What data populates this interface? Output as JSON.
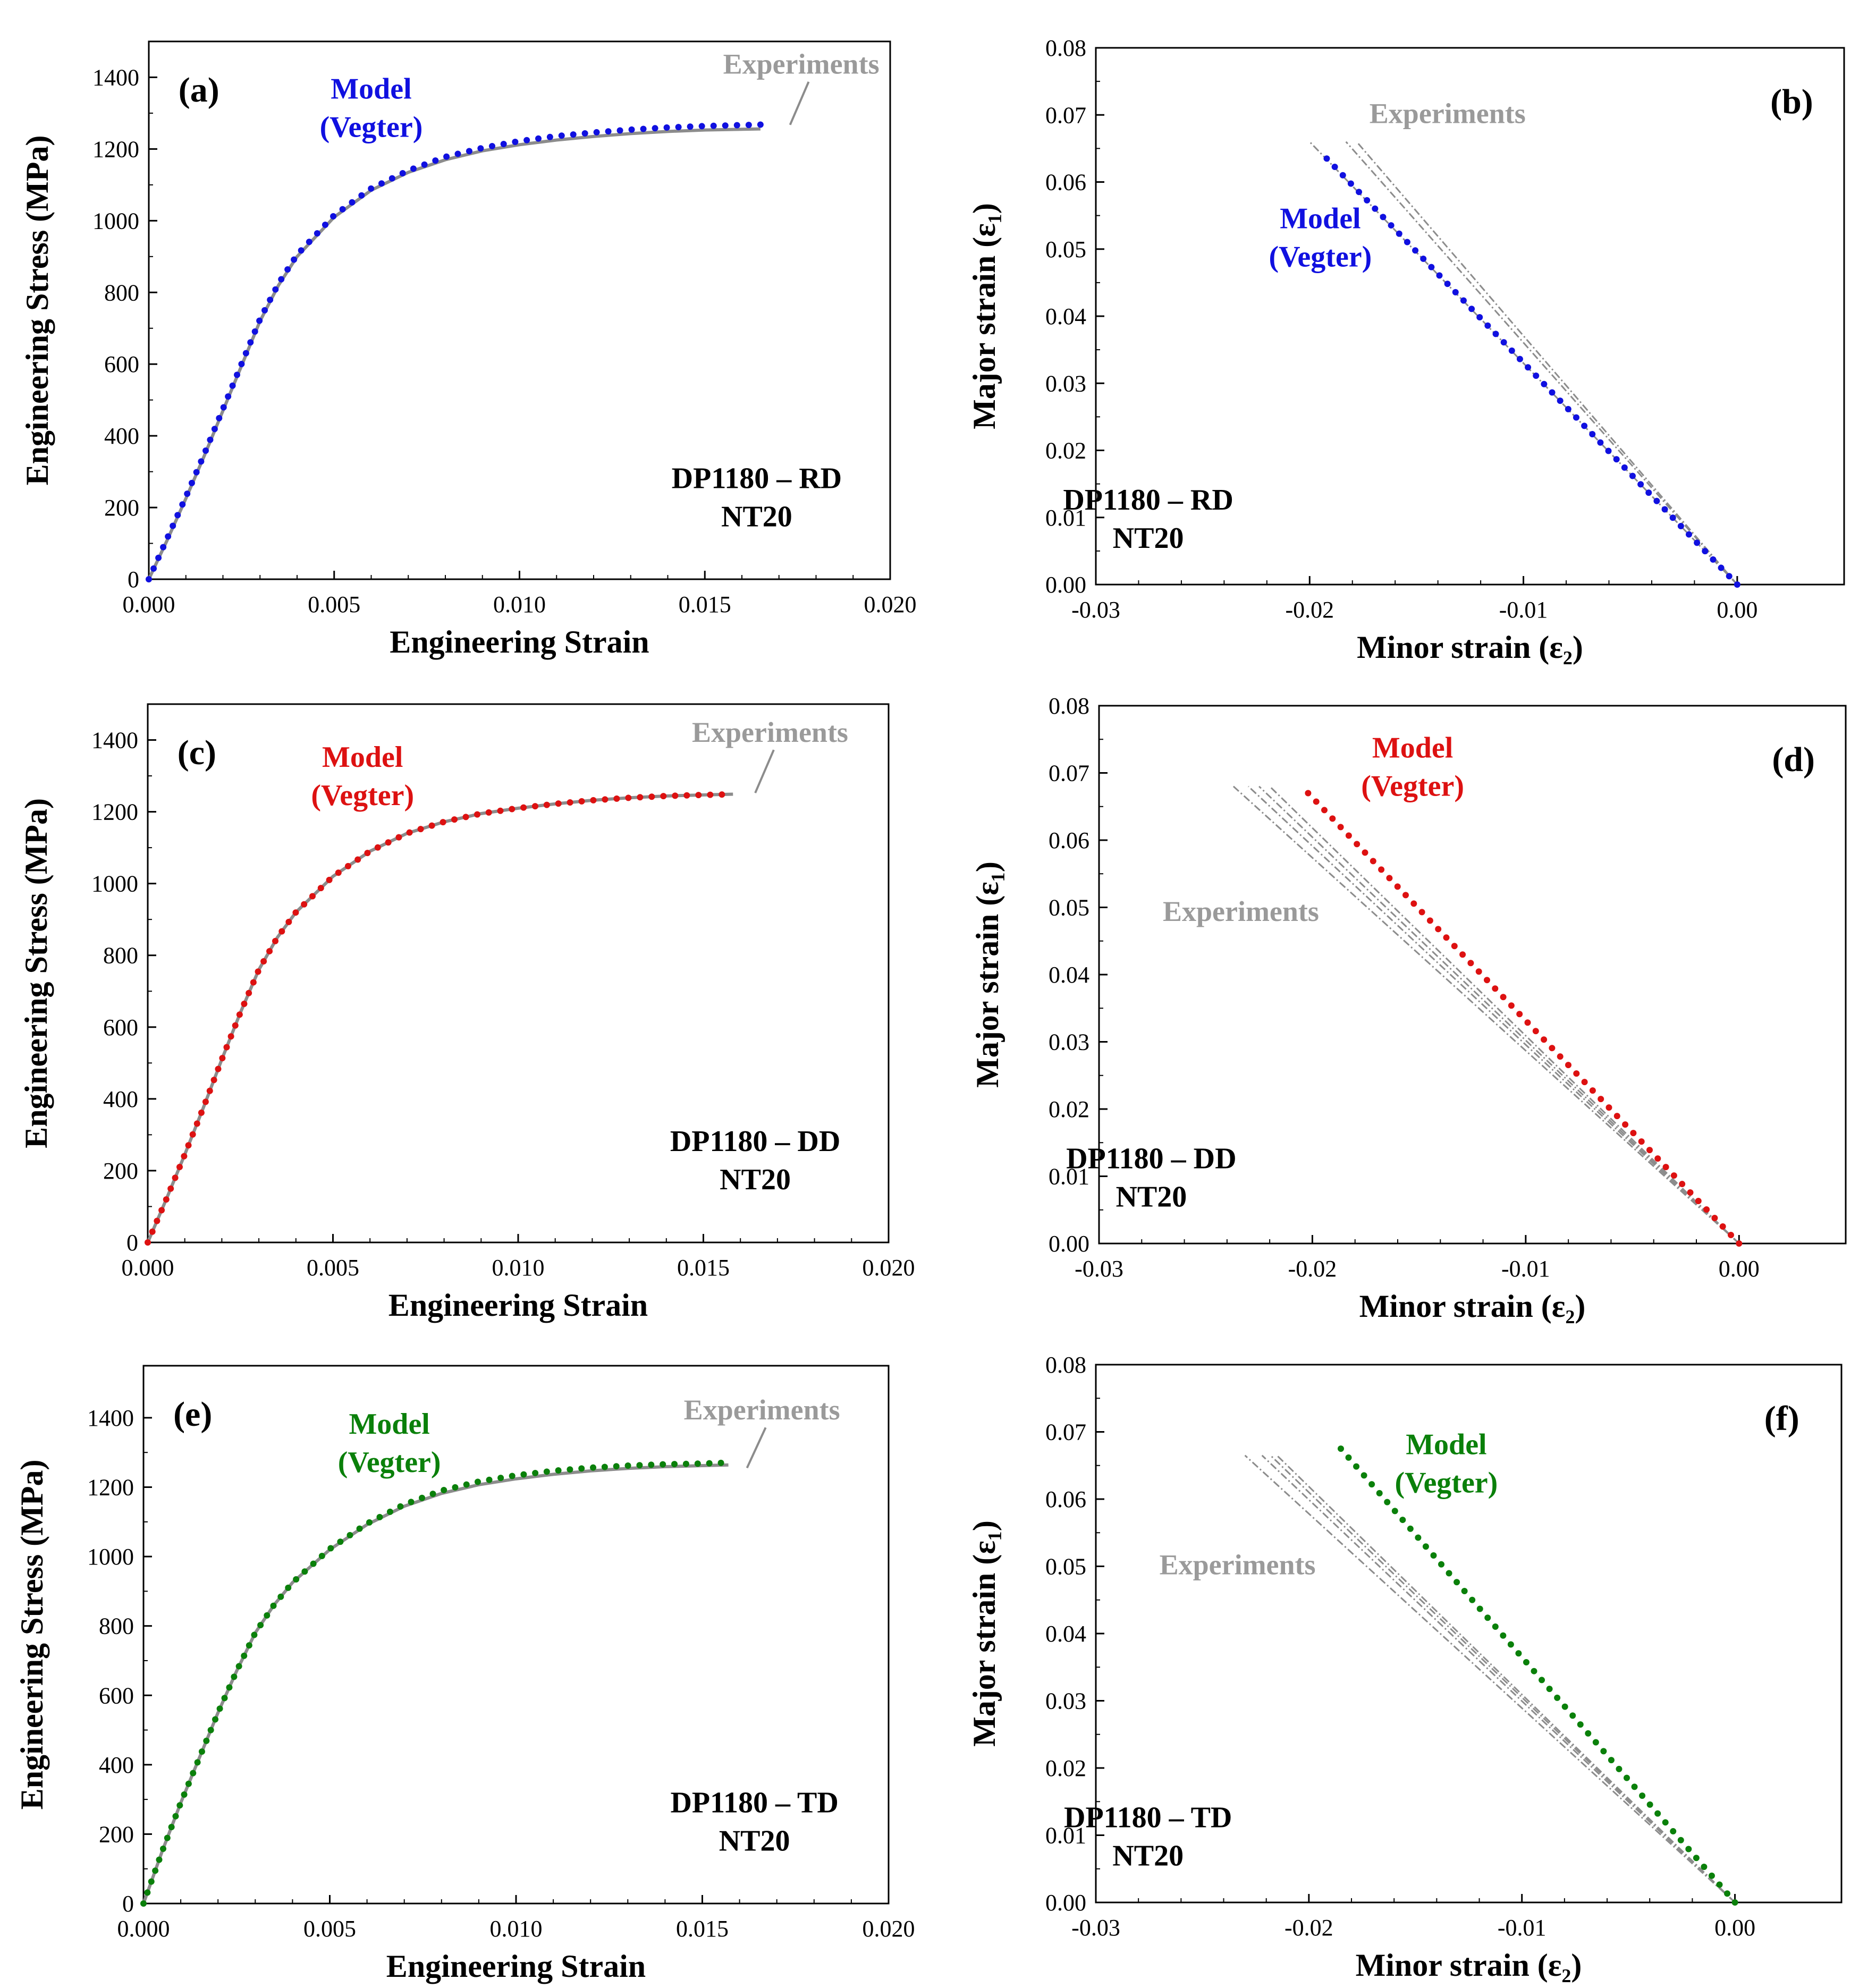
{
  "figure": {
    "description_panels": [
      "a",
      "b",
      "c",
      "d",
      "e",
      "f"
    ]
  },
  "colors": {
    "experiments": "#8c8c8c",
    "experiments_label": "#9a9a9a",
    "model_rd": "#1010e0",
    "model_dd": "#dd1111",
    "model_td": "#0a800a",
    "axis": "#000000"
  },
  "chart_data": [
    {
      "id": "a",
      "type": "line",
      "panel_label": "(a)",
      "xlabel": "Engineering Strain",
      "ylabel": "Engineering Stress (MPa)",
      "xlim": [
        0,
        0.02
      ],
      "ylim": [
        0,
        1500
      ],
      "xticks": [
        0,
        0.005,
        0.01,
        0.015,
        0.02
      ],
      "xtick_labels": [
        "0.000",
        "0.005",
        "0.010",
        "0.015",
        "0.020"
      ],
      "yticks": [
        0,
        200,
        400,
        600,
        800,
        1000,
        1200,
        1400
      ],
      "ytick_labels": [
        "0",
        "200",
        "400",
        "600",
        "800",
        "1000",
        "1200",
        "1400"
      ],
      "annotation": [
        "DP1180 – RD",
        "NT20"
      ],
      "legend": {
        "experiments": "Experiments",
        "model": [
          "Model",
          "(Vegter)"
        ]
      },
      "model_color": "#1010e0",
      "series": [
        {
          "name": "Experiments",
          "style": "solid-gray",
          "x": [
            0,
            0.0005,
            0.001,
            0.0015,
            0.002,
            0.0025,
            0.003,
            0.0035,
            0.004,
            0.005,
            0.006,
            0.007,
            0.008,
            0.009,
            0.01,
            0.011,
            0.012,
            0.013,
            0.014,
            0.015,
            0.0165
          ],
          "y": [
            0,
            110,
            225,
            345,
            470,
            595,
            720,
            820,
            900,
            1010,
            1085,
            1135,
            1170,
            1195,
            1212,
            1225,
            1235,
            1243,
            1249,
            1253,
            1256
          ]
        },
        {
          "name": "Model (Vegter)",
          "style": "dots",
          "x": [
            0,
            0.0005,
            0.001,
            0.0015,
            0.002,
            0.0025,
            0.003,
            0.0035,
            0.004,
            0.005,
            0.006,
            0.007,
            0.008,
            0.009,
            0.01,
            0.011,
            0.012,
            0.013,
            0.014,
            0.015,
            0.0165
          ],
          "y": [
            0,
            115,
            230,
            350,
            475,
            600,
            725,
            825,
            905,
            1015,
            1090,
            1140,
            1178,
            1203,
            1222,
            1236,
            1246,
            1254,
            1260,
            1264,
            1268
          ]
        }
      ]
    },
    {
      "id": "b",
      "type": "line",
      "panel_label": "(b)",
      "xlabel": "Minor strain (ε₂)",
      "ylabel": "Major strain (ε₁)",
      "xlim": [
        -0.03,
        0.005
      ],
      "ylim": [
        0,
        0.08
      ],
      "xticks": [
        -0.03,
        -0.02,
        -0.01,
        0
      ],
      "xtick_labels": [
        "-0.03",
        "-0.02",
        "-0.01",
        "0.00"
      ],
      "yticks": [
        0,
        0.01,
        0.02,
        0.03,
        0.04,
        0.05,
        0.06,
        0.07,
        0.08
      ],
      "ytick_labels": [
        "0.00",
        "0.01",
        "0.02",
        "0.03",
        "0.04",
        "0.05",
        "0.06",
        "0.07",
        "0.08"
      ],
      "annotation": [
        "DP1180 – RD",
        "NT20"
      ],
      "legend": {
        "experiments": "Experiments",
        "model": [
          "Model",
          "(Vegter)"
        ]
      },
      "model_color": "#1010e0",
      "series": [
        {
          "name": "Experiments 1",
          "style": "dashed-gray",
          "x": [
            0,
            -0.02
          ],
          "y": [
            0,
            0.066
          ]
        },
        {
          "name": "Experiments 2",
          "style": "dashed-gray",
          "x": [
            0,
            -0.0183
          ],
          "y": [
            0,
            0.066
          ]
        },
        {
          "name": "Experiments 3",
          "style": "dashed-gray",
          "x": [
            0,
            -0.0178
          ],
          "y": [
            0,
            0.066
          ]
        },
        {
          "name": "Model (Vegter)",
          "style": "dots",
          "x": [
            0,
            -0.0192
          ],
          "y": [
            0,
            0.0635
          ]
        }
      ]
    },
    {
      "id": "c",
      "type": "line",
      "panel_label": "(c)",
      "xlabel": "Engineering Strain",
      "ylabel": "Engineering Stress (MPa)",
      "xlim": [
        0,
        0.02
      ],
      "ylim": [
        0,
        1500
      ],
      "xticks": [
        0,
        0.005,
        0.01,
        0.015,
        0.02
      ],
      "xtick_labels": [
        "0.000",
        "0.005",
        "0.010",
        "0.015",
        "0.020"
      ],
      "yticks": [
        0,
        200,
        400,
        600,
        800,
        1000,
        1200,
        1400
      ],
      "ytick_labels": [
        "0",
        "200",
        "400",
        "600",
        "800",
        "1000",
        "1200",
        "1400"
      ],
      "annotation": [
        "DP1180 – DD",
        "NT20"
      ],
      "legend": {
        "experiments": "Experiments",
        "model": [
          "Model",
          "(Vegter)"
        ]
      },
      "model_color": "#dd1111",
      "series": [
        {
          "name": "Experiments",
          "style": "solid-gray",
          "x": [
            0,
            0.0005,
            0.001,
            0.0015,
            0.002,
            0.0025,
            0.003,
            0.0035,
            0.004,
            0.005,
            0.006,
            0.007,
            0.008,
            0.009,
            0.01,
            0.011,
            0.012,
            0.013,
            0.014,
            0.015,
            0.0158
          ],
          "y": [
            0,
            120,
            245,
            375,
            510,
            640,
            760,
            850,
            920,
            1020,
            1090,
            1140,
            1172,
            1195,
            1210,
            1222,
            1232,
            1239,
            1244,
            1247,
            1249
          ]
        },
        {
          "name": "Model (Vegter)",
          "style": "dots",
          "x": [
            0,
            0.0005,
            0.001,
            0.0015,
            0.002,
            0.0025,
            0.003,
            0.0035,
            0.004,
            0.005,
            0.006,
            0.007,
            0.008,
            0.009,
            0.01,
            0.011,
            0.012,
            0.013,
            0.014,
            0.015,
            0.0155
          ],
          "y": [
            0,
            120,
            245,
            375,
            510,
            640,
            760,
            850,
            920,
            1020,
            1090,
            1140,
            1172,
            1195,
            1210,
            1222,
            1232,
            1239,
            1244,
            1247,
            1248
          ]
        }
      ]
    },
    {
      "id": "d",
      "type": "line",
      "panel_label": "(d)",
      "xlabel": "Minor strain (ε₂)",
      "ylabel": "Major strain (ε₁)",
      "xlim": [
        -0.03,
        0.005
      ],
      "ylim": [
        0,
        0.08
      ],
      "xticks": [
        -0.03,
        -0.02,
        -0.01,
        0
      ],
      "xtick_labels": [
        "-0.03",
        "-0.02",
        "-0.01",
        "0.00"
      ],
      "yticks": [
        0,
        0.01,
        0.02,
        0.03,
        0.04,
        0.05,
        0.06,
        0.07,
        0.08
      ],
      "ytick_labels": [
        "0.00",
        "0.01",
        "0.02",
        "0.03",
        "0.04",
        "0.05",
        "0.06",
        "0.07",
        "0.08"
      ],
      "annotation": [
        "DP1180 – DD",
        "NT20"
      ],
      "legend": {
        "experiments": "Experiments",
        "model": [
          "Model",
          "(Vegter)"
        ]
      },
      "model_color": "#dd1111",
      "series": [
        {
          "name": "Experiments 1",
          "style": "dashed-gray",
          "x": [
            0,
            -0.0237
          ],
          "y": [
            0,
            0.068
          ]
        },
        {
          "name": "Experiments 2",
          "style": "dashed-gray",
          "x": [
            0,
            -0.023
          ],
          "y": [
            0,
            0.068
          ]
        },
        {
          "name": "Experiments 3",
          "style": "dashed-gray",
          "x": [
            0,
            -0.0225
          ],
          "y": [
            0,
            0.068
          ]
        },
        {
          "name": "Experiments 4",
          "style": "dashed-gray",
          "x": [
            0,
            -0.022
          ],
          "y": [
            0,
            0.068
          ]
        },
        {
          "name": "Model (Vegter)",
          "style": "dots",
          "x": [
            0,
            -0.0202
          ],
          "y": [
            0,
            0.067
          ]
        }
      ]
    },
    {
      "id": "e",
      "type": "line",
      "panel_label": "(e)",
      "xlabel": "Engineering Strain",
      "ylabel": "Engineering Stress (MPa)",
      "xlim": [
        0,
        0.02
      ],
      "ylim": [
        0,
        1550
      ],
      "xticks": [
        0,
        0.005,
        0.01,
        0.015,
        0.02
      ],
      "xtick_labels": [
        "0.000",
        "0.005",
        "0.010",
        "0.015",
        "0.020"
      ],
      "yticks": [
        0,
        200,
        400,
        600,
        800,
        1000,
        1200,
        1400
      ],
      "ytick_labels": [
        "0",
        "200",
        "400",
        "600",
        "800",
        "1000",
        "1200",
        "1400"
      ],
      "annotation": [
        "DP1180 – TD",
        "NT20"
      ],
      "legend": {
        "experiments": "Experiments",
        "model": [
          "Model",
          "(Vegter)"
        ]
      },
      "model_color": "#0a800a",
      "series": [
        {
          "name": "Experiments",
          "style": "solid-gray",
          "x": [
            0,
            0.0005,
            0.001,
            0.0015,
            0.002,
            0.0025,
            0.003,
            0.0035,
            0.004,
            0.005,
            0.006,
            0.007,
            0.008,
            0.009,
            0.01,
            0.011,
            0.012,
            0.013,
            0.014,
            0.015,
            0.0157
          ],
          "y": [
            0,
            150,
            290,
            420,
            550,
            670,
            780,
            860,
            925,
            1020,
            1092,
            1145,
            1182,
            1207,
            1224,
            1237,
            1247,
            1254,
            1259,
            1262,
            1264
          ]
        },
        {
          "name": "Model (Vegter)",
          "style": "dots",
          "x": [
            0,
            0.0005,
            0.001,
            0.0015,
            0.002,
            0.0025,
            0.003,
            0.0035,
            0.004,
            0.005,
            0.006,
            0.007,
            0.008,
            0.009,
            0.01,
            0.011,
            0.012,
            0.013,
            0.014,
            0.015,
            0.0155
          ],
          "y": [
            0,
            150,
            290,
            420,
            550,
            670,
            780,
            860,
            925,
            1022,
            1095,
            1150,
            1190,
            1216,
            1234,
            1247,
            1256,
            1262,
            1266,
            1268,
            1270
          ]
        }
      ]
    },
    {
      "id": "f",
      "type": "line",
      "panel_label": "(f)",
      "xlabel": "Minor strain (ε₂)",
      "ylabel": "Major strain (ε₁)",
      "xlim": [
        -0.03,
        0.005
      ],
      "ylim": [
        0,
        0.08
      ],
      "xticks": [
        -0.03,
        -0.02,
        -0.01,
        0
      ],
      "xtick_labels": [
        "-0.03",
        "-0.02",
        "-0.01",
        "0.00"
      ],
      "yticks": [
        0,
        0.01,
        0.02,
        0.03,
        0.04,
        0.05,
        0.06,
        0.07,
        0.08
      ],
      "ytick_labels": [
        "0.00",
        "0.01",
        "0.02",
        "0.03",
        "0.04",
        "0.05",
        "0.06",
        "0.07",
        "0.08"
      ],
      "annotation": [
        "DP1180 – TD",
        "NT20"
      ],
      "legend": {
        "experiments": "Experiments",
        "model": [
          "Model",
          "(Vegter)"
        ]
      },
      "model_color": "#0a800a",
      "series": [
        {
          "name": "Experiments 1",
          "style": "dashed-gray",
          "x": [
            0,
            -0.023
          ],
          "y": [
            0,
            0.0665
          ]
        },
        {
          "name": "Experiments 2",
          "style": "dashed-gray",
          "x": [
            0,
            -0.0222
          ],
          "y": [
            0,
            0.0665
          ]
        },
        {
          "name": "Experiments 3",
          "style": "dashed-gray",
          "x": [
            0,
            -0.0218
          ],
          "y": [
            0,
            0.0665
          ]
        },
        {
          "name": "Experiments 4",
          "style": "dashed-gray",
          "x": [
            0,
            -0.0215
          ],
          "y": [
            0,
            0.0665
          ]
        },
        {
          "name": "Model (Vegter)",
          "style": "dots",
          "x": [
            0,
            -0.0185
          ],
          "y": [
            0,
            0.0675
          ]
        }
      ]
    }
  ]
}
